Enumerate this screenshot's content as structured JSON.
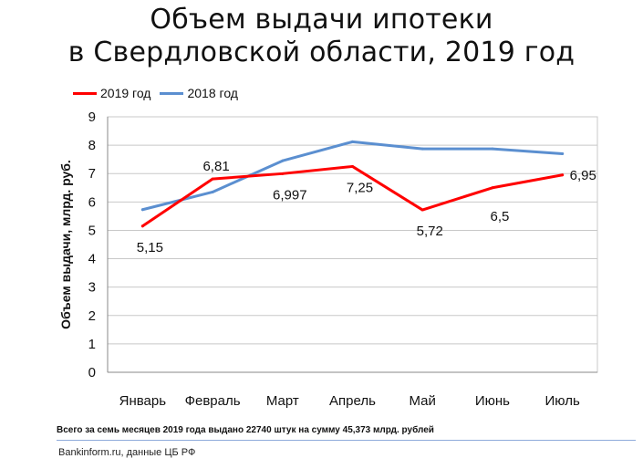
{
  "title_line_1": "Объем выдачи ипотеки",
  "title_line_2": "в Свердловской области, 2019 год",
  "footnote": "Всего за семь месяцев 2019 года  выдано 22740  штук на сумму 45,373 млрд.  рублей",
  "source": "Bankinform.ru,  данные ЦБ РФ",
  "colors": {
    "series_2019": "#ff0000",
    "series_2018": "#5b8fd0",
    "grid": "#c8c8c8",
    "axis": "#888888"
  },
  "chart_data": {
    "type": "line",
    "ylabel": "Объем выдачи, млрд. руб.",
    "xlabel": "",
    "categories": [
      "Январь",
      "Февраль",
      "Март",
      "Апрель",
      "Май",
      "Июнь",
      "Июль"
    ],
    "ylim": [
      0,
      9
    ],
    "yticks": [
      "0",
      "1",
      "2",
      "3",
      "4",
      "5",
      "6",
      "7",
      "8",
      "9"
    ],
    "grid": true,
    "legend_position": "top-left",
    "series": [
      {
        "name": "2019 год",
        "color": "#ff0000",
        "values": [
          5.15,
          6.81,
          6.997,
          7.25,
          5.72,
          6.5,
          6.95
        ],
        "labels": [
          "5,15",
          "6,81",
          "6,997",
          "7,25",
          "5,72",
          "6,5",
          "6,95"
        ]
      },
      {
        "name": "2018 год",
        "color": "#5b8fd0",
        "values": [
          5.73,
          6.35,
          7.45,
          8.12,
          7.87,
          7.87,
          7.7
        ]
      }
    ]
  }
}
